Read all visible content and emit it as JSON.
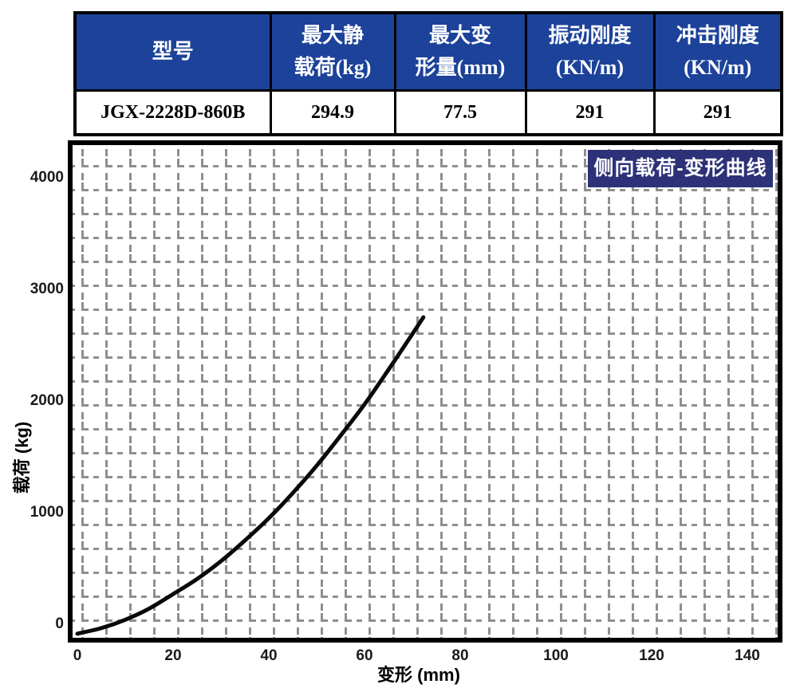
{
  "table": {
    "columns": [
      {
        "header_lines": [
          "型号",
          ""
        ],
        "value": "JGX-2228D-860B"
      },
      {
        "header_lines": [
          "最大静",
          "载荷(kg)"
        ],
        "value": "294.9"
      },
      {
        "header_lines": [
          "最大变",
          "形量(mm)"
        ],
        "value": "77.5"
      },
      {
        "header_lines": [
          "振动刚度",
          "(KN/m)"
        ],
        "value": "291"
      },
      {
        "header_lines": [
          "冲击刚度",
          "(KN/m)"
        ],
        "value": "291"
      }
    ]
  },
  "chart_data": {
    "type": "line",
    "title": "侧向载荷-变形曲线",
    "xlabel": "变形 (mm)",
    "ylabel": "载荷 (kg)",
    "x_ticks": [
      0,
      20,
      40,
      60,
      80,
      100,
      120,
      140
    ],
    "y_ticks": [
      0,
      1000,
      2000,
      3000,
      4000
    ],
    "xlim": [
      0,
      146
    ],
    "ylim": [
      -130,
      4290
    ],
    "grid": "dashed",
    "legend_position": "top-right",
    "series": [
      {
        "name": "侧向载荷-变形曲线",
        "points": [
          [
            0,
            -85
          ],
          [
            5,
            -35
          ],
          [
            10,
            40
          ],
          [
            15,
            140
          ],
          [
            20,
            270
          ],
          [
            25,
            405
          ],
          [
            30,
            565
          ],
          [
            35,
            750
          ],
          [
            40,
            950
          ],
          [
            45,
            1175
          ],
          [
            50,
            1420
          ],
          [
            55,
            1690
          ],
          [
            60,
            1970
          ],
          [
            65,
            2280
          ],
          [
            70,
            2600
          ],
          [
            72.3,
            2750
          ]
        ]
      }
    ]
  },
  "colors": {
    "table_header_bg": "#1c429a",
    "table_header_text": "#ffffff",
    "legend_bg": "#2c3178",
    "legend_text": "#ffffff",
    "grid_gray": "#8f8f8f",
    "curve": "#0a0a0a",
    "frame": "#000000"
  }
}
